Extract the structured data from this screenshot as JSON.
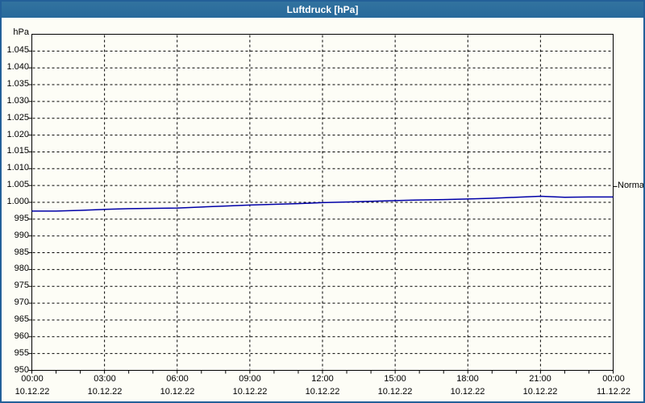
{
  "window": {
    "title": "Luftdruck [hPa]"
  },
  "colors": {
    "titlebar": "#2a6c9e",
    "window_border": "#236099",
    "background": "#fdfdf6",
    "grid": "#000000",
    "axis": "#000000",
    "line": "#0000a8",
    "title_text": "#ffffff",
    "label_text": "#000000"
  },
  "chart_data": {
    "type": "line",
    "title": "Luftdruck [hPa]",
    "ylabel": "hPa",
    "xlabel": "",
    "ylim": [
      950,
      1050
    ],
    "xlim_hours": [
      0,
      24
    ],
    "grid": "dashed",
    "legend_position": "none",
    "y_ticks": {
      "values": [
        1045,
        1040,
        1035,
        1030,
        1025,
        1020,
        1015,
        1010,
        1005,
        1000,
        995,
        990,
        985,
        980,
        975,
        970,
        965,
        960,
        955,
        950
      ],
      "labels": [
        "1.045",
        "1.040",
        "1.035",
        "1.030",
        "1.025",
        "1.020",
        "1.015",
        "1.010",
        "1.005",
        "1.000",
        "995",
        "990",
        "985",
        "980",
        "975",
        "970",
        "965",
        "960",
        "955",
        "950"
      ]
    },
    "x_ticks": [
      {
        "hour": 0,
        "time": "00:00",
        "date": "10.12.22"
      },
      {
        "hour": 3,
        "time": "03:00",
        "date": "10.12.22"
      },
      {
        "hour": 6,
        "time": "06:00",
        "date": "10.12.22"
      },
      {
        "hour": 9,
        "time": "09:00",
        "date": "10.12.22"
      },
      {
        "hour": 12,
        "time": "12:00",
        "date": "10.12.22"
      },
      {
        "hour": 15,
        "time": "15:00",
        "date": "10.12.22"
      },
      {
        "hour": 18,
        "time": "18:00",
        "date": "10.12.22"
      },
      {
        "hour": 21,
        "time": "21:00",
        "date": "10.12.22"
      },
      {
        "hour": 24,
        "time": "00:00",
        "date": "11.12.22"
      }
    ],
    "minor_x_tick_every_hours": 1,
    "normal_marker": {
      "label": "Normal",
      "value": 1004.7
    },
    "series": [
      {
        "name": "Luftdruck",
        "color": "#0000a8",
        "x_hours": [
          0,
          1,
          2,
          3,
          4,
          5,
          6,
          7,
          8,
          9,
          10,
          11,
          12,
          13,
          14,
          15,
          16,
          17,
          18,
          19,
          20,
          21,
          22,
          23,
          24
        ],
        "values": [
          997.4,
          997.4,
          997.6,
          997.9,
          998.1,
          998.2,
          998.3,
          998.6,
          998.9,
          999.2,
          999.4,
          999.6,
          999.9,
          1000.1,
          1000.3,
          1000.5,
          1000.7,
          1000.8,
          1001.0,
          1001.2,
          1001.5,
          1001.8,
          1001.5,
          1001.6,
          1001.6
        ]
      }
    ]
  }
}
